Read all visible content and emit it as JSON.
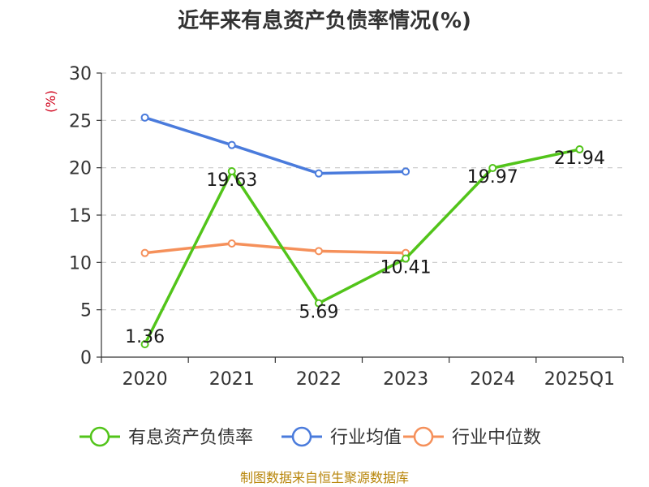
{
  "chart_data": {
    "type": "line",
    "title": "近年来有息资产负债率情况(%)",
    "ylabel": "(%)",
    "categories": [
      "2020",
      "2021",
      "2022",
      "2023",
      "2024",
      "2025Q1"
    ],
    "ylim": [
      0,
      30
    ],
    "yticks": [
      0,
      5,
      10,
      15,
      20,
      25,
      30
    ],
    "grid": true,
    "legend_position": "bottom",
    "series": [
      {
        "name": "有息资产负债率",
        "color": "#52c41a",
        "values": [
          1.36,
          19.63,
          5.69,
          10.41,
          19.97,
          21.94
        ],
        "labeled": true
      },
      {
        "name": "行业均值",
        "color": "#4a7bdc",
        "values": [
          25.3,
          22.4,
          19.4,
          19.6,
          null,
          null
        ],
        "labeled": false
      },
      {
        "name": "行业中位数",
        "color": "#f5905a",
        "values": [
          11.0,
          12.0,
          11.2,
          11.0,
          null,
          null
        ],
        "labeled": false
      }
    ],
    "data_labels": [
      "1.36",
      "19.63",
      "5.69",
      "10.41",
      "19.97",
      "21.94"
    ]
  },
  "source": "制图数据来自恒生聚源数据库"
}
